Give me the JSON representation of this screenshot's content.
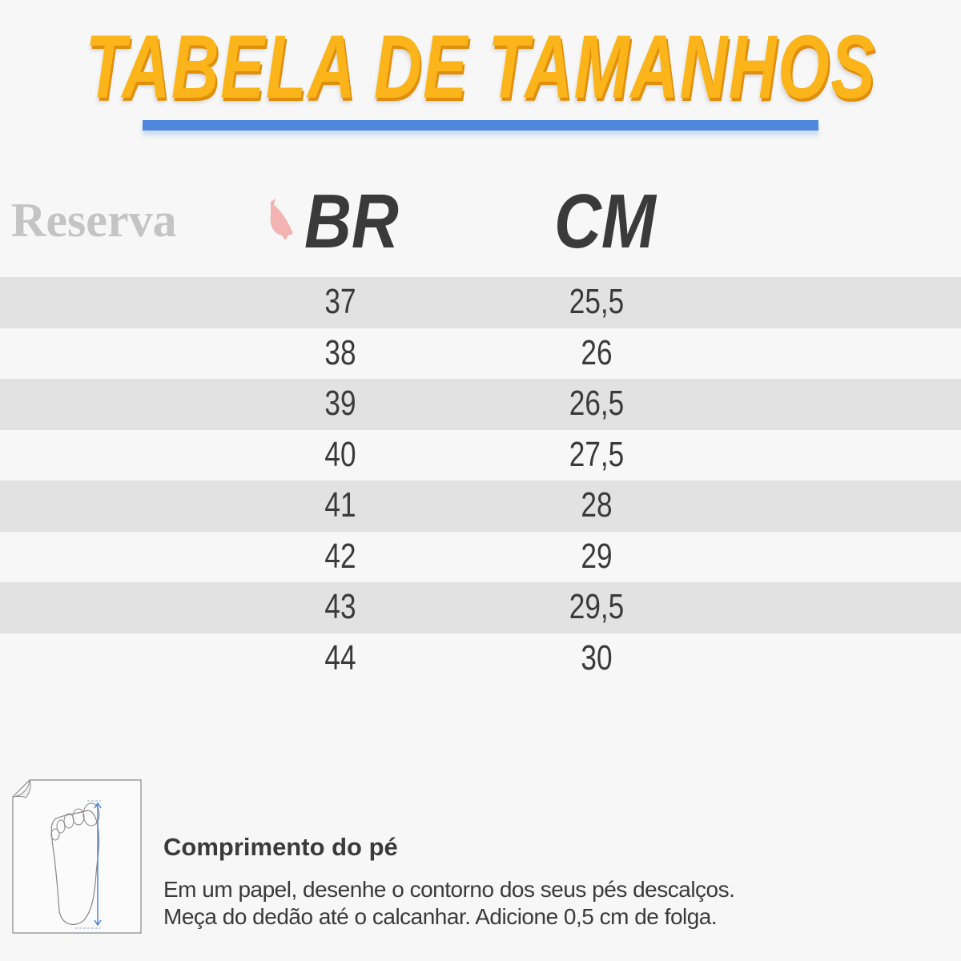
{
  "title": "TABELA DE TAMANHOS",
  "brand_logo": "Reserva",
  "colors": {
    "title": "#fbb51a",
    "underline": "#4f86de",
    "text": "#3a3a3a",
    "row_shade": "#e2e2e2",
    "logo_bird": "#f4b3b3"
  },
  "table": {
    "headers": {
      "br": "BR",
      "cm": "CM"
    },
    "rows": [
      {
        "br": "37",
        "cm": "25,5"
      },
      {
        "br": "38",
        "cm": "26"
      },
      {
        "br": "39",
        "cm": "26,5"
      },
      {
        "br": "40",
        "cm": "27,5"
      },
      {
        "br": "41",
        "cm": "28"
      },
      {
        "br": "42",
        "cm": "29"
      },
      {
        "br": "43",
        "cm": "29,5"
      },
      {
        "br": "44",
        "cm": "30"
      }
    ]
  },
  "instructions": {
    "title": "Comprimento do pé",
    "line1": "Em um papel, desenhe o contorno dos seus pés descalços.",
    "line2": "Meça do dedão até o calcanhar. Adicione 0,5 cm de folga.",
    "icon": "foot-on-paper-icon"
  }
}
